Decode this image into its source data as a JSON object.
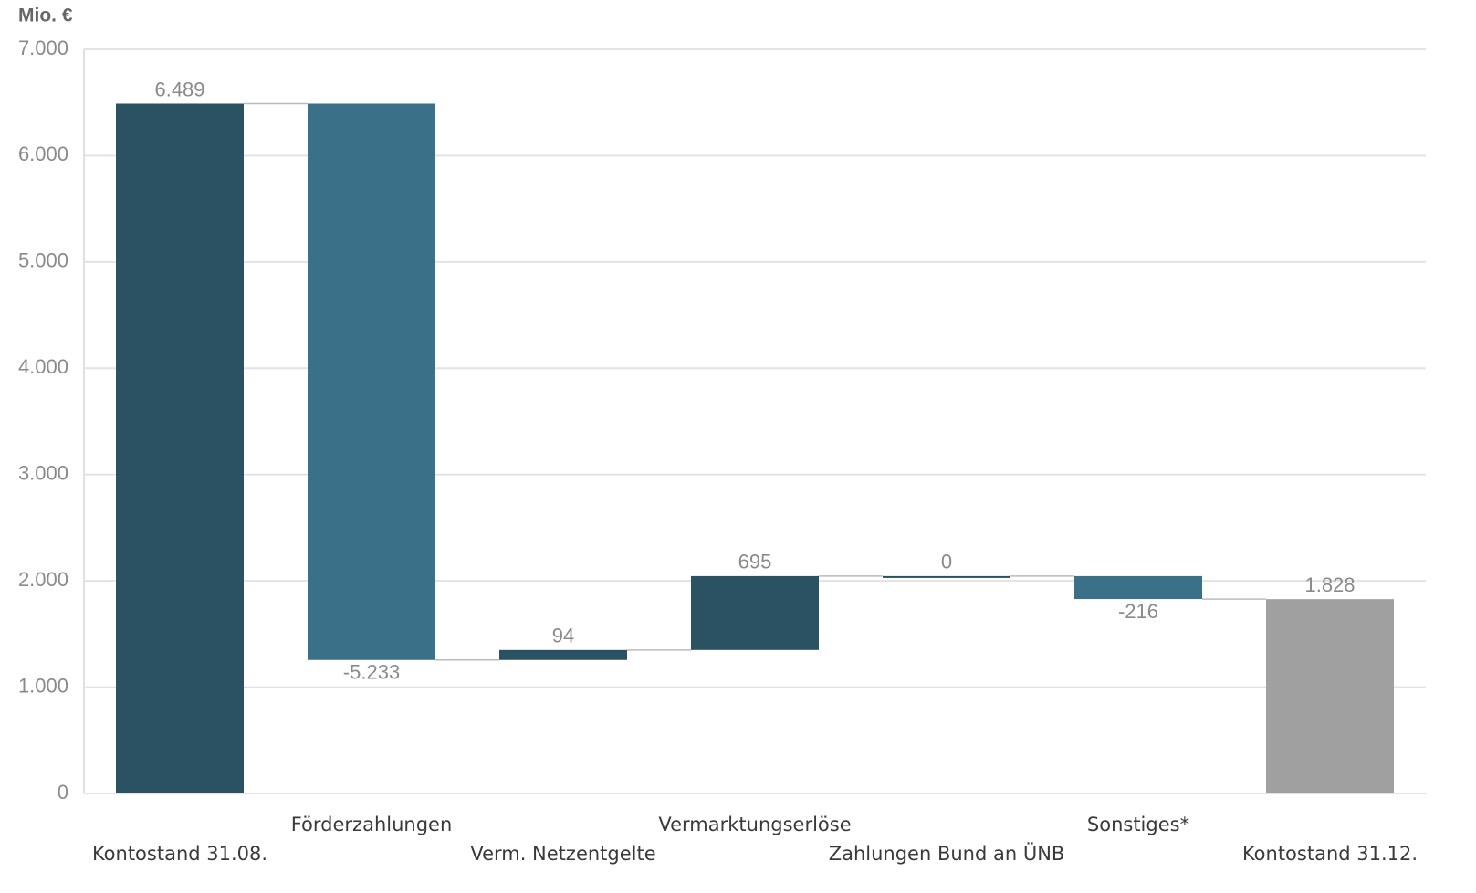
{
  "chart_data": {
    "type": "waterfall",
    "y_label": "Mio. €",
    "categories": [
      "Kontostand 31.08.",
      "Förderzahlungen",
      "Verm. Netzentgelte",
      "Vermarktungserlöse",
      "Zahlungen Bund an ÜNB",
      "Sonstiges*",
      "Kontostand 31.12."
    ],
    "values": [
      6489,
      -5233,
      94,
      695,
      0,
      -216,
      1828
    ],
    "value_labels": [
      "6.489",
      "-5.233",
      "94",
      "695",
      "0",
      "-216",
      "1.828"
    ],
    "totals": [
      true,
      false,
      false,
      false,
      false,
      false,
      true
    ],
    "colors": [
      "#2b5263",
      "#3a7189",
      "#2b5263",
      "#2b5263",
      "#2b5263",
      "#3a7189",
      "#a0a0a0"
    ],
    "ylim": [
      0,
      7000
    ],
    "yticks": [
      0,
      {
        "value": 1000,
        "label": "1.000"
      },
      {
        "value": 2000,
        "label": "2.000"
      },
      {
        "value": 3000,
        "label": "3.000"
      },
      {
        "value": 4000,
        "label": "4.000"
      },
      {
        "value": 5000,
        "label": "5.000"
      },
      {
        "value": 6000,
        "label": "6.000"
      },
      {
        "value": 7000,
        "label": "7.000"
      }
    ],
    "grid": true
  }
}
